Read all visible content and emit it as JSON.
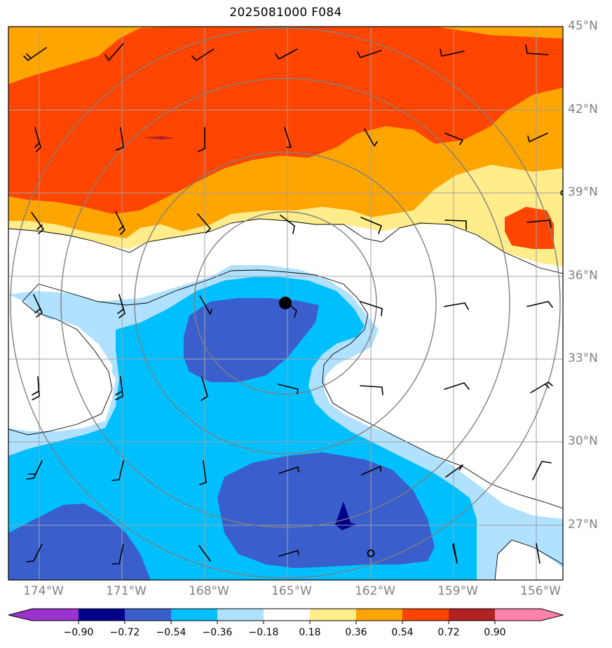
{
  "title": "2025081000 F084",
  "lat_labels": [
    "45°N",
    "42°N",
    "39°N",
    "36°N",
    "33°N",
    "30°N",
    "27°N"
  ],
  "lon_labels": [
    "174°W",
    "171°W",
    "168°W",
    "165°W",
    "162°W",
    "159°W",
    "156°W"
  ],
  "colorbar": {
    "ticks": [
      "−0.90",
      "−0.72",
      "−0.54",
      "−0.36",
      "−0.18",
      "0.18",
      "0.36",
      "0.54",
      "0.72",
      "0.90"
    ],
    "colors": [
      "#9a32cd",
      "#00008b",
      "#3a5fcd",
      "#00bfff",
      "#b0e2ff",
      "#ffffff",
      "#ffec8b",
      "#ffa500",
      "#ff4500",
      "#b22222",
      "#ff82ab"
    ]
  },
  "map_colors": {
    "land": "#ffffff",
    "grid": "#a0a0a0",
    "range_rings": "#808080",
    "contour": "#000000"
  },
  "markers": {
    "center": "filled-circle-marker",
    "open": "open-circle-marker",
    "triangle": "triangle-marker"
  }
}
